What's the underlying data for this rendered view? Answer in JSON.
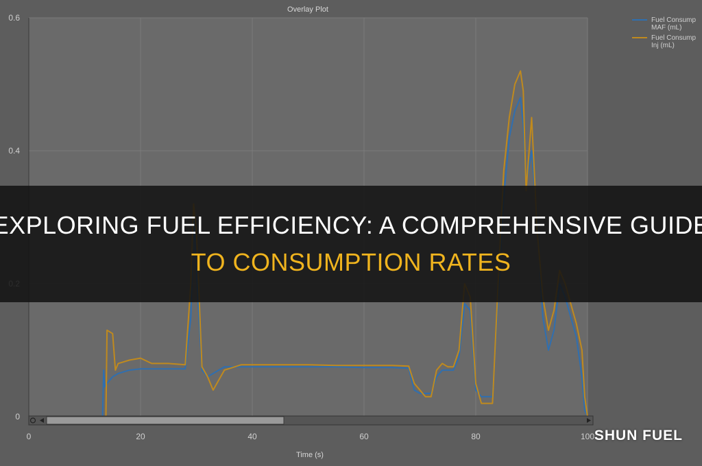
{
  "banner": {
    "line1": "EXPLORING FUEL EFFICIENCY: A COMPREHENSIVE GUIDE",
    "line2": "TO CONSUMPTION RATES"
  },
  "brand": {
    "name": "SHUN FUEL"
  },
  "colors": {
    "series_maf": "#2f6fb0",
    "series_inj": "#c08a1e",
    "accent": "#f0b41e"
  },
  "chart_data": {
    "type": "line",
    "title": "Overlay Plot",
    "xlabel": "Time (s)",
    "ylabel": "",
    "xlim": [
      0,
      100
    ],
    "ylim": [
      0,
      0.6
    ],
    "x_ticks": [
      "0",
      "20",
      "40",
      "60",
      "80",
      "100"
    ],
    "y_ticks": [
      "0",
      "0.2",
      "0.4",
      "0.6"
    ],
    "grid": true,
    "legend_position": "top-right",
    "series": [
      {
        "name": "Fuel Consumption MAF (mL)",
        "legend_lines": [
          "Fuel Consump",
          "MAF (mL)"
        ],
        "color": "#2f6fb0",
        "x": [
          0,
          13.2,
          13.4,
          13.6,
          14,
          15,
          16,
          18,
          20,
          25,
          28,
          29,
          29.5,
          30,
          31,
          32,
          33,
          34,
          35,
          38,
          40,
          45,
          50,
          55,
          60,
          65,
          68,
          69,
          70,
          71,
          72,
          73,
          74,
          75,
          76,
          77,
          78,
          79,
          80,
          81,
          82,
          83,
          84,
          85,
          86,
          87,
          88,
          88.5,
          89,
          90,
          91,
          92,
          93,
          94,
          95,
          96,
          97,
          98,
          99,
          99.5,
          100
        ],
        "y": [
          0,
          0,
          0.07,
          0.045,
          0.05,
          0.06,
          0.065,
          0.07,
          0.072,
          0.072,
          0.072,
          0.15,
          0.3,
          0.22,
          0.07,
          0.06,
          0.065,
          0.07,
          0.075,
          0.075,
          0.075,
          0.075,
          0.075,
          0.075,
          0.074,
          0.074,
          0.073,
          0.04,
          0.035,
          0.035,
          0.035,
          0.06,
          0.07,
          0.07,
          0.07,
          0.09,
          0.17,
          0.16,
          0.04,
          0.03,
          0.03,
          0.03,
          0.18,
          0.33,
          0.42,
          0.46,
          0.48,
          0.44,
          0.35,
          0.4,
          0.3,
          0.15,
          0.1,
          0.13,
          0.2,
          0.18,
          0.15,
          0.12,
          0.06,
          0.01,
          0
        ]
      },
      {
        "name": "Fuel Consumption Inj (mL)",
        "legend_lines": [
          "Fuel Consump",
          "Inj (mL)"
        ],
        "color": "#c08a1e",
        "x": [
          0,
          13.8,
          14,
          15,
          15.5,
          16,
          18,
          20,
          22,
          25,
          28,
          29,
          29.5,
          30,
          31,
          32,
          33,
          34,
          35,
          38,
          40,
          45,
          50,
          55,
          60,
          65,
          68,
          69,
          70,
          71,
          72,
          73,
          74,
          75,
          76,
          77,
          78,
          79,
          80,
          81,
          82,
          83,
          84,
          85,
          86,
          87,
          88,
          88.5,
          89,
          90,
          91,
          92,
          93,
          94,
          95,
          96,
          97,
          98,
          99,
          99.5,
          100
        ],
        "y": [
          0,
          0,
          0.13,
          0.125,
          0.07,
          0.08,
          0.085,
          0.088,
          0.08,
          0.08,
          0.078,
          0.2,
          0.32,
          0.28,
          0.075,
          0.06,
          0.04,
          0.055,
          0.07,
          0.078,
          0.078,
          0.078,
          0.078,
          0.077,
          0.077,
          0.077,
          0.076,
          0.05,
          0.04,
          0.03,
          0.03,
          0.07,
          0.08,
          0.075,
          0.075,
          0.1,
          0.2,
          0.18,
          0.05,
          0.02,
          0.02,
          0.02,
          0.2,
          0.37,
          0.45,
          0.5,
          0.52,
          0.49,
          0.34,
          0.45,
          0.28,
          0.18,
          0.13,
          0.16,
          0.22,
          0.2,
          0.17,
          0.14,
          0.1,
          0.03,
          0
        ]
      }
    ]
  }
}
